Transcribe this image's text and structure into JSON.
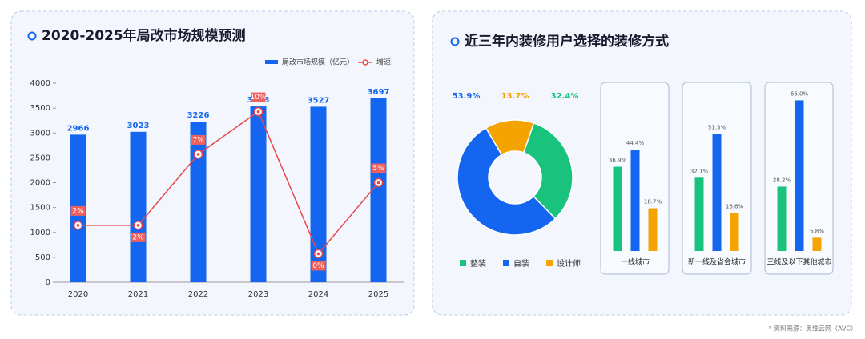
{
  "chart_data": [
    {
      "type": "bar",
      "title": "2020-2025年局改市场规模预测",
      "categories": [
        "2020",
        "2021",
        "2022",
        "2023",
        "2024",
        "2025"
      ],
      "series": [
        {
          "name": "局改市场规模（亿元）",
          "color": "#1466f0",
          "values": [
            2966,
            3023,
            3226,
            3533,
            3527,
            3697
          ]
        },
        {
          "name": "增速",
          "type": "line",
          "axis": "y2",
          "color": "#e8474c",
          "values": [
            2,
            2,
            7,
            10,
            0,
            5
          ],
          "value_labels": [
            "2%",
            "2%",
            "7%",
            "10%",
            "0%",
            "5%"
          ]
        }
      ],
      "ylim": [
        0,
        4000
      ],
      "yticks": [
        0,
        500,
        1000,
        1500,
        2000,
        2500,
        3000,
        3500,
        4000
      ],
      "y2lim": [
        -2,
        12
      ]
    },
    {
      "type": "pie",
      "title": "近三年内装修用户选择的装修方式",
      "categories": [
        "整装",
        "自装",
        "设计师"
      ],
      "values": [
        32.4,
        53.9,
        13.7
      ],
      "value_labels": [
        "32.4%",
        "53.9%",
        "13.7%"
      ],
      "colors": [
        "#19c37d",
        "#1466f0",
        "#f5a300"
      ]
    },
    {
      "type": "grouped-bar",
      "categories": [
        "一线城市",
        "新一线及省会城市",
        "三线及以下其他城市"
      ],
      "series": [
        {
          "color": "#19c37d",
          "values": [
            36.9,
            32.1,
            28.2
          ],
          "value_labels": [
            "36.9%",
            "32.1%",
            "28.2%"
          ]
        },
        {
          "color": "#1466f0",
          "values": [
            44.4,
            51.3,
            66.0
          ],
          "value_labels": [
            "44.4%",
            "51.3%",
            "66.0%"
          ]
        },
        {
          "color": "#f5a300",
          "values": [
            18.7,
            16.6,
            5.8
          ],
          "value_labels": [
            "18.7%",
            "16.6%",
            "5.8%"
          ]
        }
      ],
      "ylim": [
        0,
        70
      ]
    }
  ],
  "source": "* 资料来源：奥维云网（AVC）"
}
